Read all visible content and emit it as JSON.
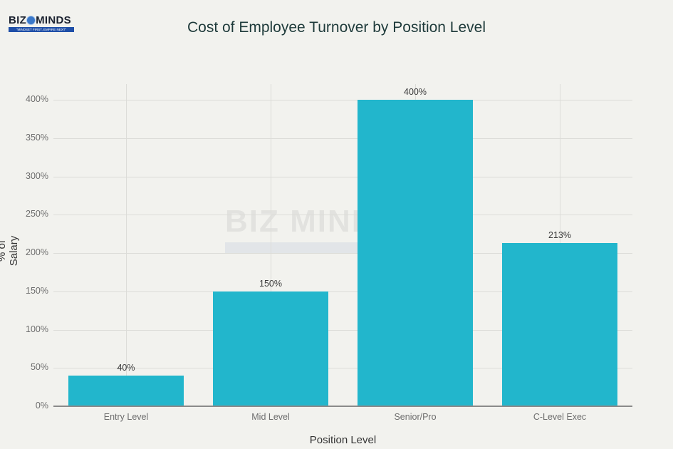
{
  "logo": {
    "name": "BIZ MINDS",
    "left": "BIZ",
    "right": "MINDS",
    "tagline": "\"MINDSET FIRST, EMPIRE NEXT\""
  },
  "watermark": {
    "text": "BIZ MINDS"
  },
  "chart_data": {
    "type": "bar",
    "title": "Cost of Employee Turnover by Position Level",
    "xlabel": "Position Level",
    "ylabel": "% of Salary",
    "categories": [
      "Entry Level",
      "Mid Level",
      "Senior/Pro",
      "C-Level Exec"
    ],
    "values": [
      40,
      150,
      400,
      213
    ],
    "data_labels": [
      "40%",
      "150%",
      "400%",
      "213%"
    ],
    "ylim": [
      0,
      420
    ],
    "yticks": [
      0,
      50,
      100,
      150,
      200,
      250,
      300,
      350,
      400
    ],
    "ytick_labels": [
      "0%",
      "50%",
      "100%",
      "150%",
      "200%",
      "250%",
      "300%",
      "350%",
      "400%"
    ],
    "grid": true,
    "legend": null,
    "bar_color": "#22b6cc"
  }
}
